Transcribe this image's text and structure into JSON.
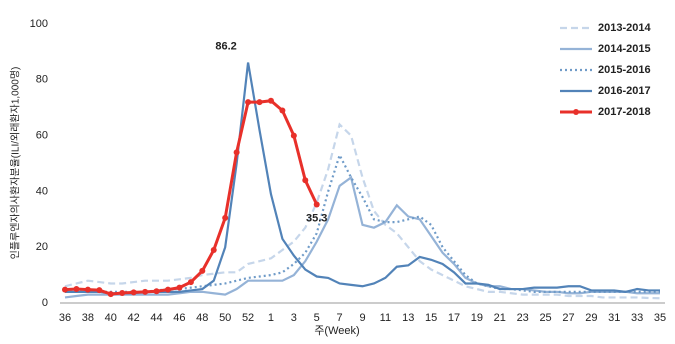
{
  "chart_data": {
    "type": "line",
    "x_label": "주(Week)",
    "y_label": "인플루엔자의사환자분율(ILI/외래환자1,000명)",
    "categories": [
      36,
      null,
      38,
      null,
      40,
      null,
      42,
      null,
      44,
      null,
      46,
      null,
      48,
      null,
      50,
      null,
      52,
      null,
      1,
      null,
      3,
      null,
      5,
      null,
      7,
      null,
      9,
      null,
      11,
      null,
      13,
      null,
      15,
      null,
      17,
      null,
      19,
      null,
      21,
      null,
      23,
      null,
      25,
      null,
      27,
      null,
      29,
      null,
      31,
      null,
      33,
      null,
      35
    ],
    "ylim": [
      0,
      100
    ],
    "yticks": [
      0,
      20,
      40,
      60,
      80,
      100
    ],
    "grid": false,
    "legend": "right",
    "series": [
      {
        "name": "2013-2014",
        "color": "#c6d6ea",
        "dash": "dashed",
        "values": [
          6,
          7,
          8,
          7.5,
          7,
          7,
          7.5,
          8,
          8,
          8,
          8.5,
          9,
          10,
          10.5,
          11,
          11,
          14,
          15,
          16,
          19,
          22,
          27,
          36,
          48,
          64,
          60,
          45,
          33,
          28,
          25,
          20,
          15,
          12,
          10,
          8,
          6,
          5,
          4,
          4,
          3.5,
          3,
          3,
          3,
          3,
          2.5,
          2.5,
          2.5,
          2,
          2,
          2,
          2,
          1.8,
          1.7
        ]
      },
      {
        "name": "2014-2015",
        "color": "#95b3d7",
        "dash": "solid",
        "values": [
          2,
          2.5,
          3,
          3,
          3,
          3,
          3,
          3,
          3,
          3,
          3.5,
          4,
          4,
          3.5,
          3,
          5,
          8,
          8,
          8,
          8,
          10,
          15,
          22,
          30,
          42,
          45,
          28,
          27,
          29,
          35,
          31,
          30,
          24,
          18,
          14,
          9,
          7,
          6,
          6,
          5,
          5,
          4.5,
          4,
          4,
          3.5,
          3.5,
          4,
          4,
          4,
          4,
          3.5,
          3.5,
          3.5
        ]
      },
      {
        "name": "2015-2016",
        "color": "#6f9bc8",
        "dash": "dotted",
        "values": [
          4,
          4,
          4,
          4,
          4,
          4,
          4,
          4,
          4.5,
          5,
          5,
          5.5,
          6,
          6.5,
          7,
          8,
          9,
          9.5,
          10,
          11,
          14,
          18,
          25,
          40,
          53,
          45,
          38,
          30,
          29,
          29,
          30,
          31,
          28,
          20,
          15,
          10,
          7,
          6,
          5,
          5,
          4.5,
          4,
          4,
          4,
          4,
          4,
          4,
          4,
          4,
          4,
          4,
          4,
          4
        ]
      },
      {
        "name": "2016-2017",
        "color": "#5283b8",
        "dash": "solid",
        "values": [
          4,
          4,
          4,
          4,
          3.5,
          3.5,
          3.5,
          4,
          4,
          4,
          4,
          4.5,
          5,
          8,
          20,
          50,
          86.2,
          62,
          39,
          23,
          17,
          12,
          9.5,
          9,
          7,
          6.5,
          6,
          7,
          9,
          13,
          13.5,
          16.5,
          15.5,
          14,
          11,
          7,
          7,
          6.5,
          5,
          5,
          5,
          5.5,
          5.5,
          5.5,
          6,
          6,
          4.5,
          4.5,
          4.5,
          4,
          5,
          4.5,
          4.5
        ],
        "value_labels": [
          null,
          null,
          null,
          null,
          null,
          null,
          null,
          null,
          null,
          null,
          null,
          null,
          null,
          null,
          null,
          null,
          "86.2",
          null,
          null,
          null,
          null,
          null,
          null,
          null,
          null,
          null,
          null,
          null,
          null,
          null,
          null,
          null,
          null,
          null,
          null,
          null,
          null,
          null,
          null,
          null,
          null,
          null,
          null,
          null,
          null,
          null,
          null,
          null,
          null,
          null,
          null,
          null,
          null
        ]
      },
      {
        "name": "2017-2018",
        "color": "#e8302a",
        "dash": "solid",
        "marker": true,
        "values": [
          4.8,
          5,
          4.8,
          4.6,
          3.2,
          3.6,
          3.8,
          4,
          4.2,
          4.8,
          5.5,
          7.5,
          11.5,
          19,
          30.5,
          54,
          72,
          72,
          72.5,
          69,
          60,
          44,
          35.3,
          null,
          null,
          null,
          null,
          null,
          null,
          null,
          null,
          null,
          null,
          null,
          null,
          null,
          null,
          null,
          null,
          null,
          null,
          null,
          null,
          null,
          null,
          null,
          null,
          null,
          null,
          null,
          null,
          null,
          null
        ],
        "value_labels": [
          null,
          null,
          null,
          null,
          null,
          null,
          null,
          null,
          null,
          null,
          null,
          null,
          null,
          null,
          null,
          null,
          null,
          null,
          null,
          null,
          null,
          null,
          "35.3",
          null,
          null,
          null,
          null,
          null,
          null,
          null,
          null,
          null,
          null,
          null,
          null,
          null,
          null,
          null,
          null,
          null,
          null,
          null,
          null,
          null,
          null,
          null,
          null,
          null,
          null,
          null,
          null,
          null,
          null
        ]
      }
    ]
  }
}
